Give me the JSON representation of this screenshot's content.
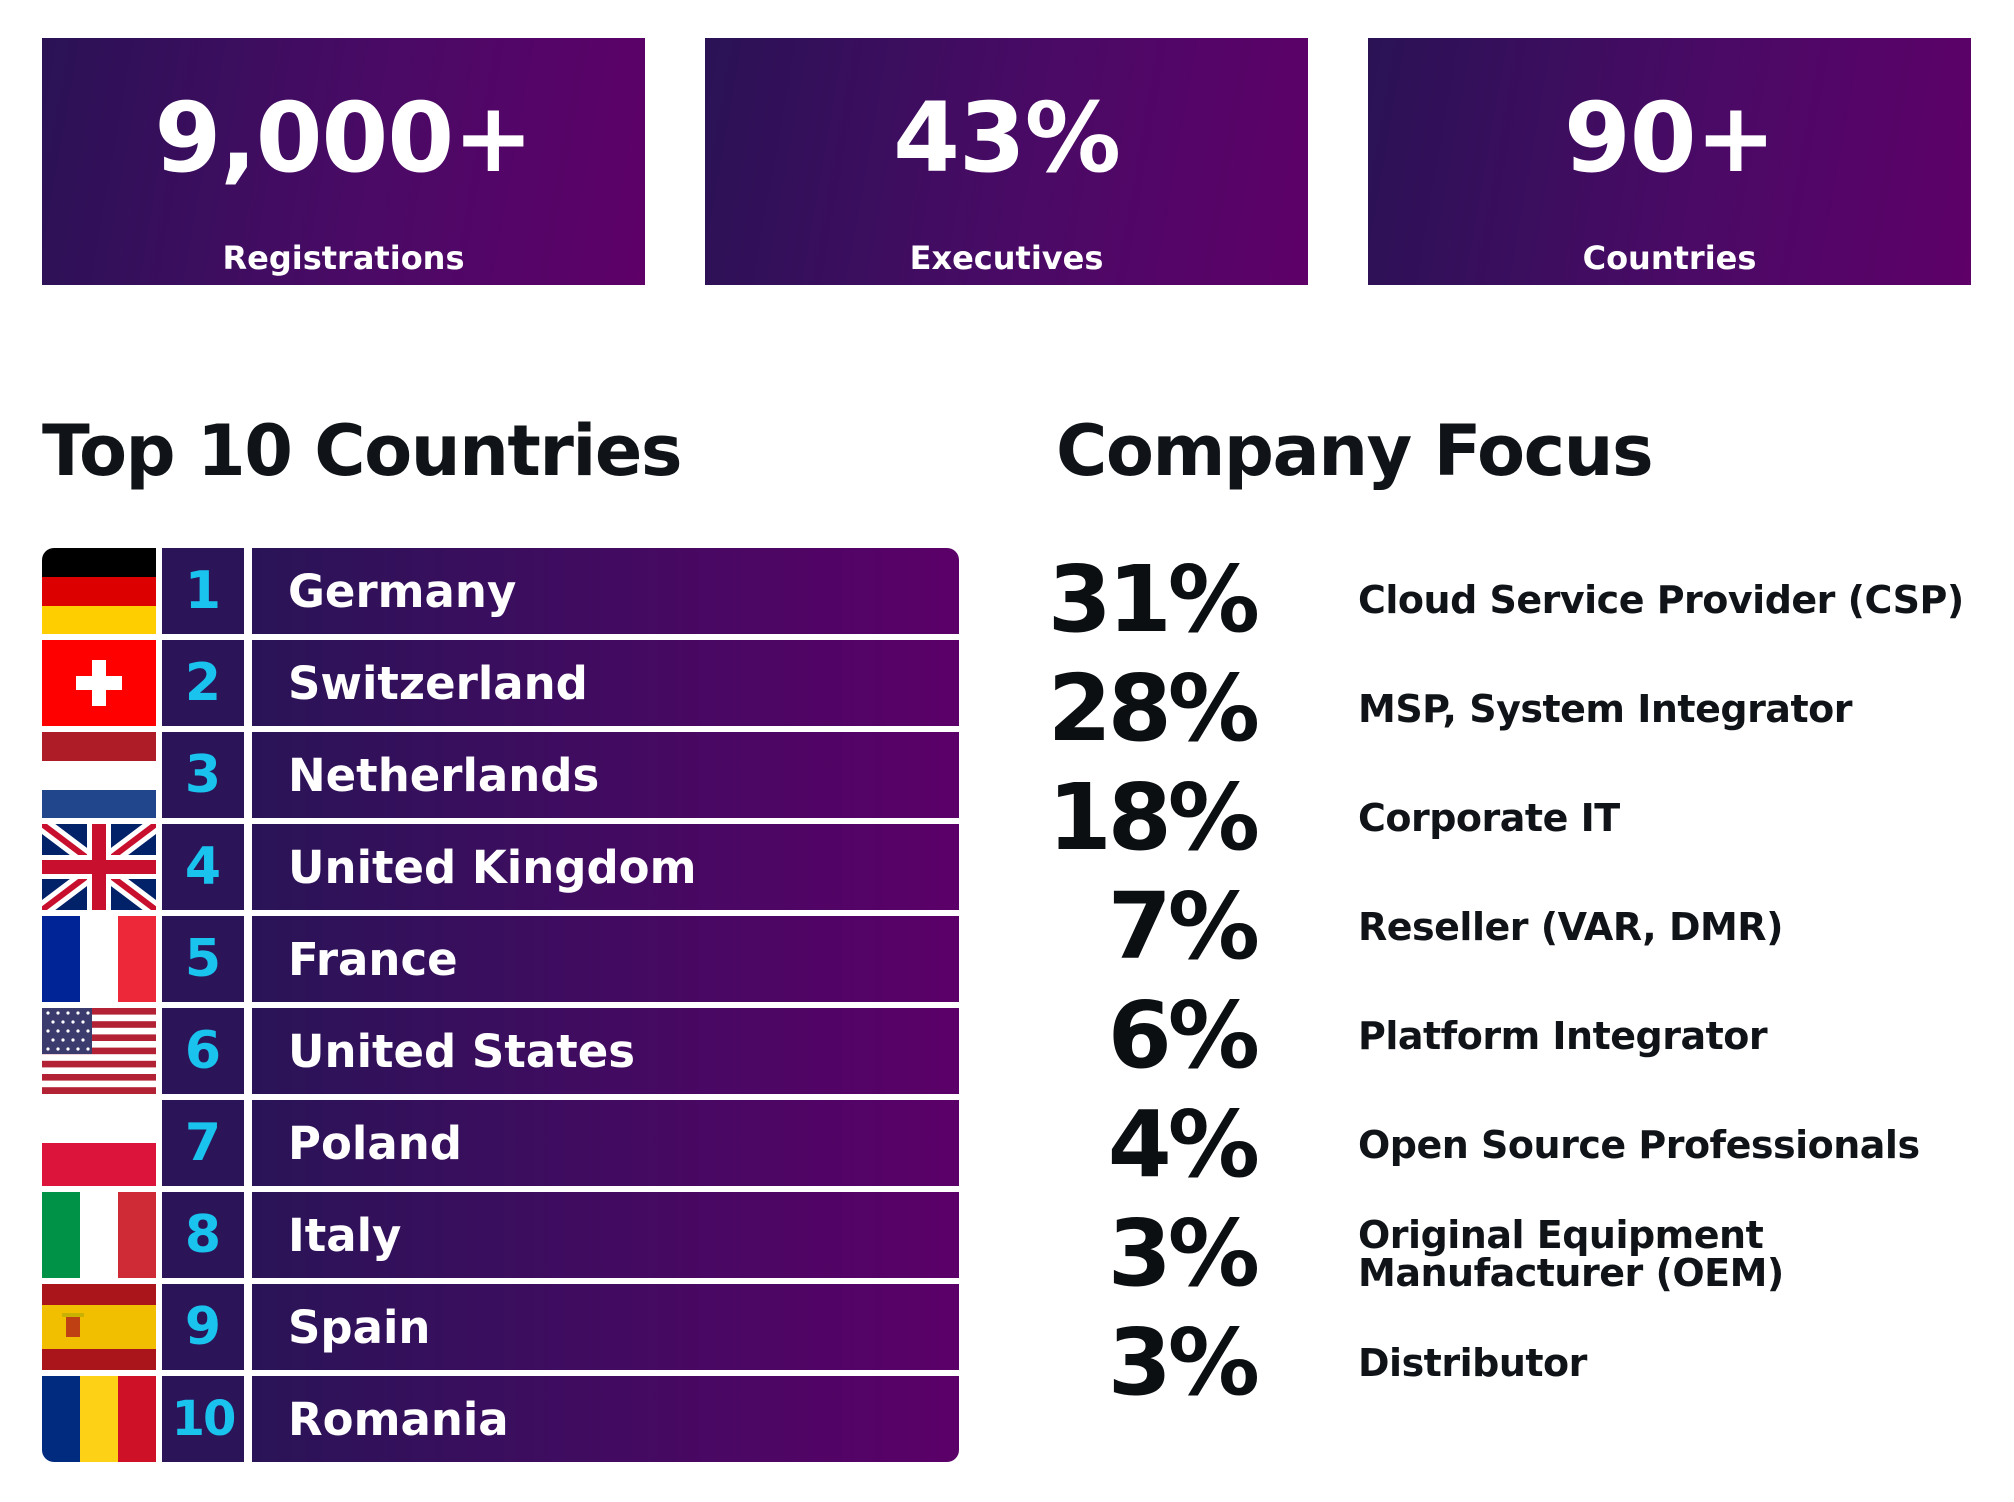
{
  "stats": [
    {
      "value": "9,000+",
      "label": "Registrations"
    },
    {
      "value": "43%",
      "label": "Executives"
    },
    {
      "value": "90+",
      "label": "Countries"
    }
  ],
  "countries_heading": "Top 10 Countries",
  "countries": [
    {
      "rank": "1",
      "name": "Germany",
      "flag": "germany-flag-icon"
    },
    {
      "rank": "2",
      "name": "Switzerland",
      "flag": "switzerland-flag-icon"
    },
    {
      "rank": "3",
      "name": "Netherlands",
      "flag": "netherlands-flag-icon"
    },
    {
      "rank": "4",
      "name": "United Kingdom",
      "flag": "uk-flag-icon"
    },
    {
      "rank": "5",
      "name": "France",
      "flag": "france-flag-icon"
    },
    {
      "rank": "6",
      "name": "United States",
      "flag": "usa-flag-icon"
    },
    {
      "rank": "7",
      "name": "Poland",
      "flag": "poland-flag-icon"
    },
    {
      "rank": "8",
      "name": "Italy",
      "flag": "italy-flag-icon"
    },
    {
      "rank": "9",
      "name": "Spain",
      "flag": "spain-flag-icon"
    },
    {
      "rank": "10",
      "name": "Romania",
      "flag": "romania-flag-icon"
    }
  ],
  "focus_heading": "Company Focus",
  "focus": [
    {
      "pct": "31%",
      "label": "Cloud Service Provider (CSP)"
    },
    {
      "pct": "28%",
      "label": "MSP, System Integrator"
    },
    {
      "pct": "18%",
      "label": "Corporate IT"
    },
    {
      "pct": "7%",
      "label": "Reseller (VAR, DMR)"
    },
    {
      "pct": "6%",
      "label": "Platform Integrator"
    },
    {
      "pct": "4%",
      "label": "Open Source Professionals"
    },
    {
      "pct": "3%",
      "label": "Original Equipment Manufacturer (OEM)"
    },
    {
      "pct": "3%",
      "label": "Distributor"
    }
  ],
  "colors": {
    "accent": "#19c3ee",
    "panel_dark": "#2a1255",
    "panel_purple": "#5e0068",
    "text_dark": "#101418"
  }
}
